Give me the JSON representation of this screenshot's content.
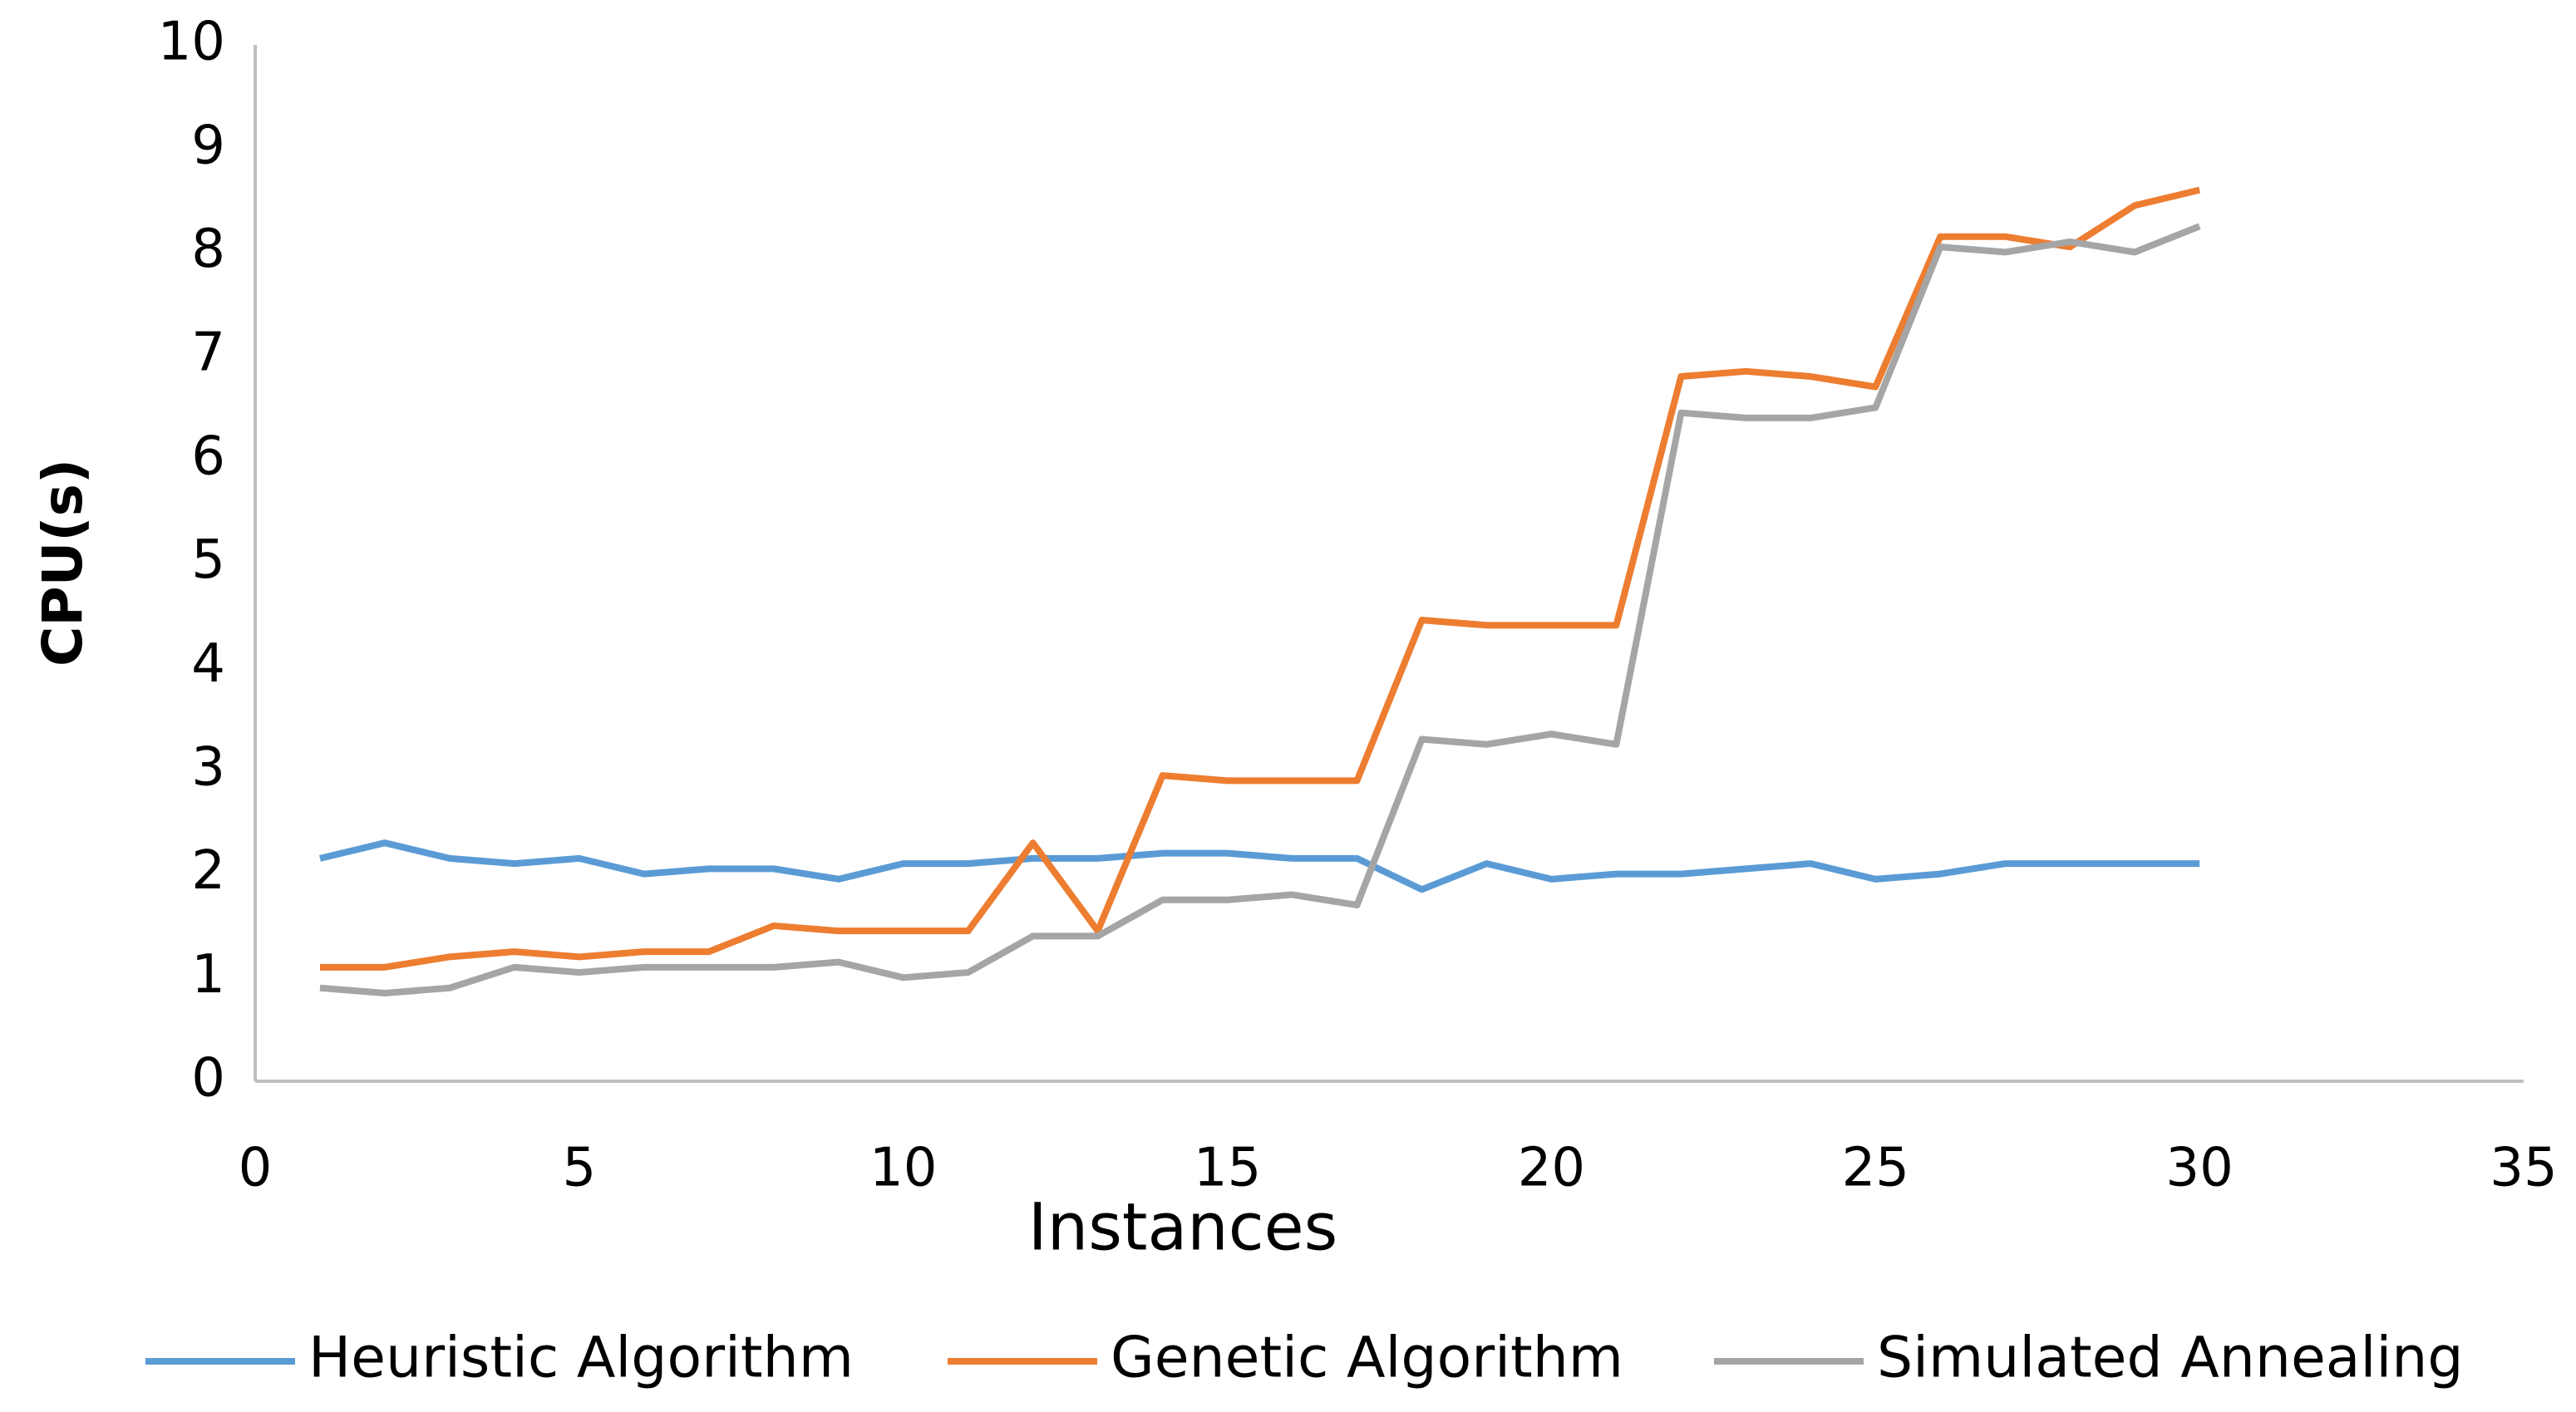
{
  "chart_data": {
    "type": "line",
    "x_label": "Instances",
    "y_label": "CPU(s)",
    "x": [
      1,
      2,
      3,
      4,
      5,
      6,
      7,
      8,
      9,
      10,
      11,
      12,
      13,
      14,
      15,
      16,
      17,
      18,
      19,
      20,
      21,
      22,
      23,
      24,
      25,
      26,
      27,
      28,
      29,
      30
    ],
    "series": [
      {
        "name": "Heuristic Algorithm",
        "color": "#5b9bd5",
        "values": [
          2.15,
          2.3,
          2.15,
          2.1,
          2.15,
          2.0,
          2.05,
          2.05,
          1.95,
          2.1,
          2.1,
          2.15,
          2.15,
          2.2,
          2.2,
          2.15,
          2.15,
          1.85,
          2.1,
          1.95,
          2.0,
          2.0,
          2.05,
          2.1,
          1.95,
          2.0,
          2.1,
          2.1,
          2.1,
          2.1
        ]
      },
      {
        "name": "Genetic Algorithm",
        "color": "#ed7d31",
        "values": [
          1.1,
          1.1,
          1.2,
          1.25,
          1.2,
          1.25,
          1.25,
          1.5,
          1.45,
          1.45,
          1.45,
          2.3,
          1.45,
          2.95,
          2.9,
          2.9,
          2.9,
          4.45,
          4.4,
          4.4,
          4.4,
          6.8,
          6.85,
          6.8,
          6.7,
          8.15,
          8.15,
          8.05,
          8.45,
          8.6
        ]
      },
      {
        "name": "Simulated Annealing",
        "color": "#a5a5a5",
        "values": [
          0.9,
          0.85,
          0.9,
          1.1,
          1.05,
          1.1,
          1.1,
          1.1,
          1.15,
          1.0,
          1.05,
          1.4,
          1.4,
          1.75,
          1.75,
          1.8,
          1.7,
          3.3,
          3.25,
          3.35,
          3.25,
          6.45,
          6.4,
          6.4,
          6.5,
          8.05,
          8.0,
          8.1,
          8.0,
          8.25
        ]
      }
    ],
    "xlim": [
      0,
      35
    ],
    "xticks": [
      0,
      5,
      10,
      15,
      20,
      25,
      30,
      35
    ],
    "ylim": [
      0,
      10
    ],
    "yticks": [
      0,
      1,
      2,
      3,
      4,
      5,
      6,
      7,
      8,
      9,
      10
    ],
    "grid": false,
    "legend": "bottom"
  }
}
